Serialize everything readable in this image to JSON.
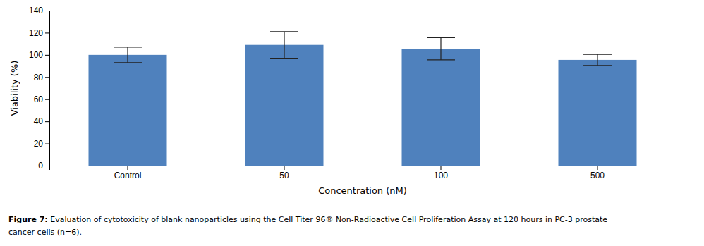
{
  "chart_data": {
    "type": "bar",
    "categories": [
      "Control",
      "50",
      "100",
      "500"
    ],
    "values": [
      100,
      109,
      105.5,
      95.5
    ],
    "errors": [
      7,
      12,
      10,
      5
    ],
    "color": "#4f81bd",
    "xlabel": "Concentration (nM)",
    "ylabel": "Viability (%)",
    "ylim": [
      0,
      140
    ],
    "yticks": [
      0,
      20,
      40,
      60,
      80,
      100,
      120,
      140
    ],
    "grid": false,
    "annotations": [
      "Figure 7:",
      " Evaluation of cytotoxicity of blank nanoparticles using the Cell Titer 96® Non-Radioactive Cell Proliferation Assay at 120 hours in PC-3 prostate",
      "cancer cells (n=6)."
    ]
  }
}
